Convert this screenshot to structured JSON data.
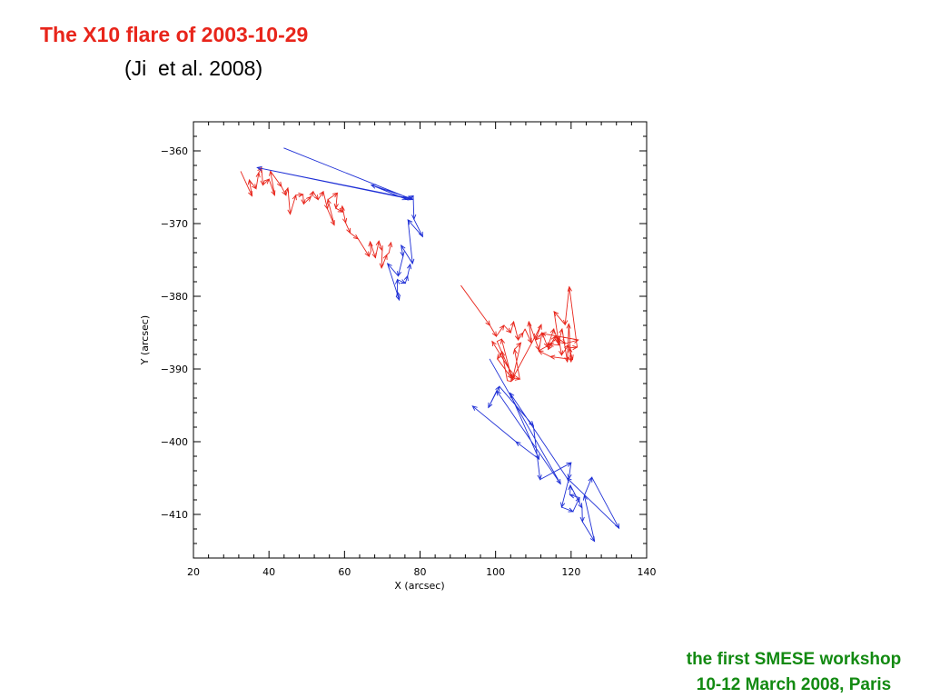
{
  "title": "The X10 flare of 2003-10-29",
  "subtitle": "(Ji  et al. 2008)",
  "footer": {
    "line1": "the first SMESE workshop",
    "line2": "10-12 March 2008, Paris"
  },
  "colors": {
    "title": "#e8251b",
    "footer": "#138a12",
    "series_red": "#e8251b",
    "series_blue": "#1e2fd6"
  },
  "chart_data": {
    "type": "line",
    "xlabel": "X (arcsec)",
    "ylabel": "Y (arcsec)",
    "xlim": [
      20,
      140
    ],
    "ylim": [
      -416,
      -356
    ],
    "xticks": [
      20,
      40,
      60,
      80,
      100,
      120,
      140
    ],
    "yticks": [
      -360,
      -370,
      -380,
      -390,
      -400,
      -410
    ],
    "grid": false,
    "series": [
      {
        "color": "red",
        "points": [
          [
            32.5,
            -362.8
          ],
          [
            35.5,
            -366.2
          ],
          [
            34.8,
            -364.0
          ],
          [
            36.6,
            -365.2
          ],
          [
            37.3,
            -363.0
          ],
          [
            38.0,
            -362.3
          ],
          [
            38.4,
            -364.7
          ],
          [
            40.0,
            -363.9
          ],
          [
            41.5,
            -366.1
          ],
          [
            40.4,
            -362.8
          ],
          [
            43.3,
            -364.9
          ],
          [
            44.5,
            -366.1
          ],
          [
            45.0,
            -365.1
          ],
          [
            45.6,
            -368.7
          ],
          [
            47.1,
            -366.1
          ],
          [
            49.0,
            -366.0
          ],
          [
            49.2,
            -367.3
          ],
          [
            51.1,
            -366.3
          ],
          [
            51.7,
            -365.6
          ],
          [
            53.0,
            -366.7
          ],
          [
            54.4,
            -365.6
          ],
          [
            55.5,
            -368.0
          ],
          [
            57.3,
            -370.2
          ],
          [
            55.6,
            -366.7
          ],
          [
            58.1,
            -365.8
          ],
          [
            57.7,
            -367.9
          ],
          [
            59.5,
            -368.4
          ],
          [
            59.4,
            -367.6
          ],
          [
            60.3,
            -369.9
          ],
          [
            61.5,
            -371.3
          ],
          [
            63.6,
            -372.1
          ],
          [
            66.5,
            -374.5
          ],
          [
            67.0,
            -373.8
          ],
          [
            66.8,
            -372.5
          ],
          [
            68.2,
            -374.7
          ],
          [
            69.1,
            -372.4
          ],
          [
            70.0,
            -373.7
          ],
          [
            69.8,
            -376.1
          ],
          [
            71.2,
            -374.3
          ],
          [
            71.8,
            -374.0
          ],
          [
            72.3,
            -372.6
          ]
        ]
      },
      {
        "color": "red",
        "points": [
          [
            90.8,
            -378.5
          ],
          [
            98.5,
            -384.0
          ],
          [
            100.2,
            -385.5
          ],
          [
            102.2,
            -384.0
          ],
          [
            104.0,
            -385.0
          ],
          [
            104.8,
            -383.5
          ],
          [
            106.0,
            -386.0
          ],
          [
            107.3,
            -385.0
          ],
          [
            107.8,
            -384.5
          ],
          [
            109.5,
            -386.4
          ],
          [
            108.8,
            -383.5
          ],
          [
            111.5,
            -387.4
          ],
          [
            112.3,
            -385.0
          ],
          [
            113.8,
            -387.0
          ],
          [
            115.4,
            -384.5
          ],
          [
            116.7,
            -386.4
          ],
          [
            117.6,
            -384.5
          ],
          [
            119.0,
            -389.0
          ],
          [
            119.4,
            -383.8
          ],
          [
            120.0,
            -389.0
          ],
          [
            119.6,
            -387.1
          ],
          [
            121.6,
            -387.0
          ],
          [
            119.5,
            -378.7
          ],
          [
            118.4,
            -383.9
          ],
          [
            115.5,
            -382.1
          ],
          [
            116.8,
            -386.7
          ],
          [
            114.2,
            -386.6
          ],
          [
            116.7,
            -385.6
          ],
          [
            117.5,
            -388.1
          ],
          [
            119.3,
            -386.7
          ],
          [
            120.4,
            -388.7
          ],
          [
            114.5,
            -388.3
          ],
          [
            111.4,
            -387.5
          ],
          [
            114.9,
            -386.5
          ],
          [
            113.9,
            -387.3
          ],
          [
            115.8,
            -385.5
          ],
          [
            118.5,
            -386.5
          ],
          [
            121.9,
            -386.0
          ],
          [
            112.2,
            -385.1
          ],
          [
            110.6,
            -386.0
          ],
          [
            112.1,
            -383.9
          ],
          [
            110.2,
            -385.8
          ],
          [
            104.1,
            -391.7
          ],
          [
            103.1,
            -391.6
          ],
          [
            101.7,
            -387.6
          ],
          [
            100.5,
            -388.6
          ],
          [
            104.3,
            -391.3
          ],
          [
            101.6,
            -385.9
          ],
          [
            100.4,
            -386.2
          ],
          [
            104.6,
            -391.2
          ],
          [
            106.4,
            -391.4
          ],
          [
            105.0,
            -387.3
          ],
          [
            106.7,
            -386.4
          ],
          [
            104.5,
            -391.4
          ],
          [
            103.6,
            -390.0
          ],
          [
            99.1,
            -386.2
          ]
        ]
      },
      {
        "color": "blue",
        "points": [
          [
            43.9,
            -359.6
          ],
          [
            78.0,
            -366.7
          ],
          [
            36.9,
            -362.3
          ],
          [
            77.9,
            -366.6
          ],
          [
            67.1,
            -364.7
          ],
          [
            76.5,
            -366.7
          ],
          [
            78.2,
            -366.2
          ],
          [
            78.4,
            -369.4
          ],
          [
            80.7,
            -371.8
          ],
          [
            76.8,
            -369.5
          ],
          [
            78.0,
            -375.5
          ],
          [
            75.0,
            -373.0
          ],
          [
            75.5,
            -374.5
          ],
          [
            74.2,
            -377.2
          ],
          [
            71.4,
            -375.5
          ],
          [
            74.5,
            -380.5
          ],
          [
            74.0,
            -379.4
          ],
          [
            74.0,
            -377.7
          ],
          [
            76.1,
            -378.2
          ],
          [
            76.7,
            -377.2
          ],
          [
            77.4,
            -375.6
          ]
        ]
      },
      {
        "color": "blue",
        "points": [
          [
            98.4,
            -388.6
          ],
          [
            117.2,
            -405.8
          ],
          [
            100.3,
            -393.0
          ],
          [
            98.1,
            -395.3
          ],
          [
            101.0,
            -392.4
          ],
          [
            110.0,
            -397.8
          ],
          [
            111.8,
            -405.2
          ],
          [
            120.0,
            -402.9
          ],
          [
            119.4,
            -405.1
          ],
          [
            117.5,
            -409.0
          ],
          [
            120.5,
            -409.6
          ],
          [
            122.2,
            -407.7
          ],
          [
            119.7,
            -407.3
          ],
          [
            119.8,
            -406.0
          ],
          [
            122.9,
            -409.1
          ],
          [
            123.0,
            -411.0
          ],
          [
            126.2,
            -413.7
          ],
          [
            123.5,
            -407.4
          ],
          [
            125.5,
            -404.9
          ],
          [
            132.7,
            -411.9
          ],
          [
            118.9,
            -405.0
          ],
          [
            103.8,
            -393.3
          ],
          [
            111.5,
            -402.4
          ],
          [
            105.4,
            -400.0
          ],
          [
            93.9,
            -395.1
          ]
        ]
      }
    ]
  }
}
